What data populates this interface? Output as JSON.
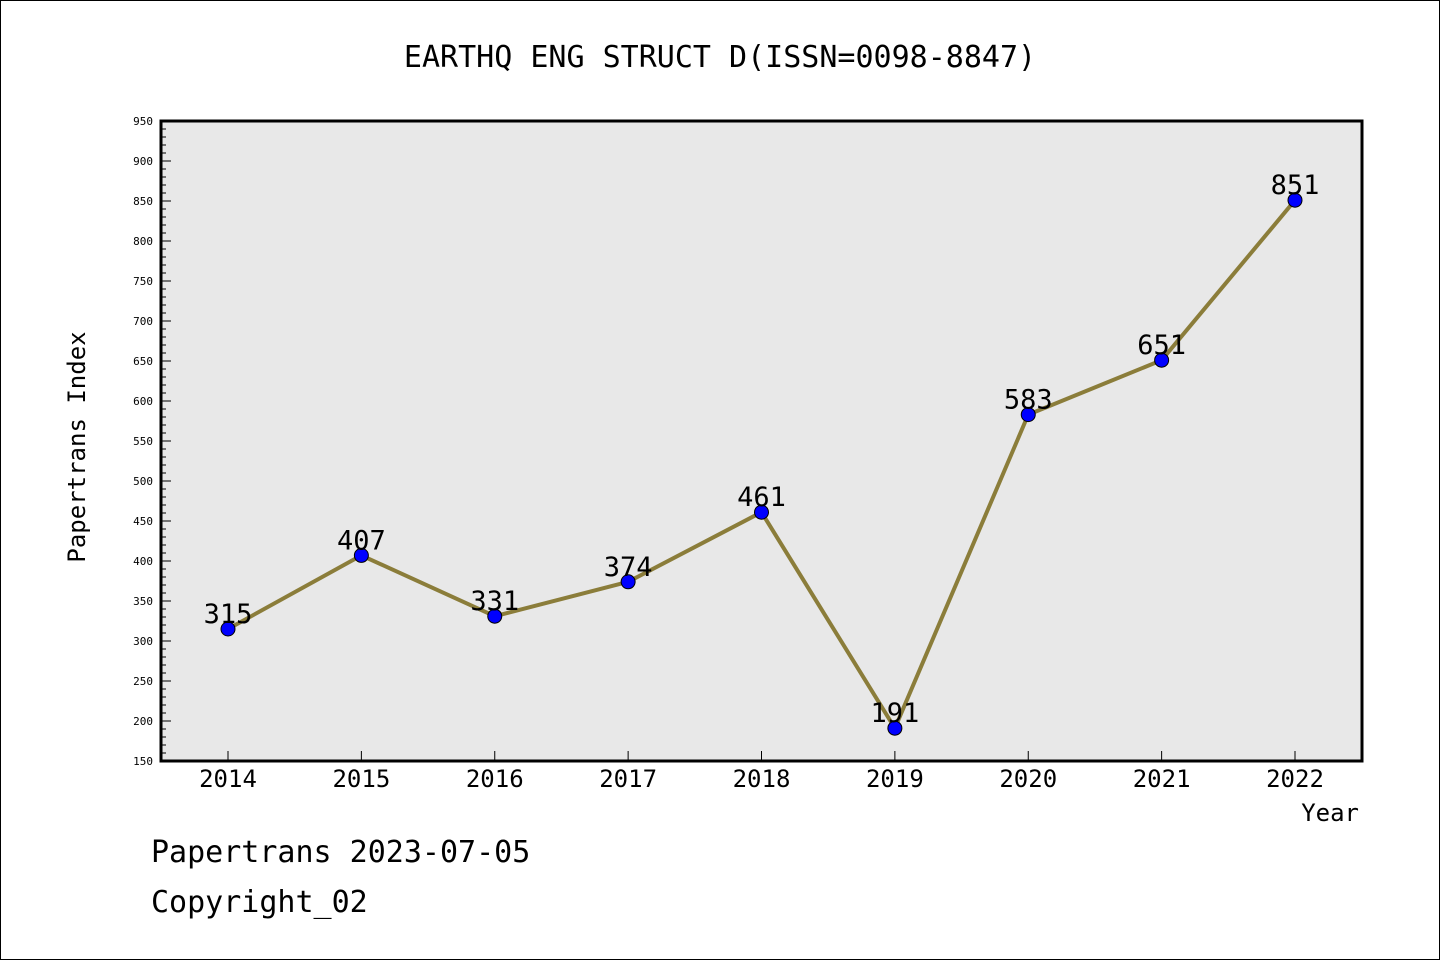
{
  "chart_data": {
    "type": "line",
    "title": "EARTHQ ENG STRUCT D(ISSN=0098-8847)",
    "xlabel": "Year",
    "ylabel": "Papertrans Index",
    "categories": [
      "2014",
      "2015",
      "2016",
      "2017",
      "2018",
      "2019",
      "2020",
      "2021",
      "2022"
    ],
    "series": [
      {
        "values": [
          315,
          407,
          331,
          374,
          461,
          191,
          583,
          651,
          851
        ],
        "color": "#8b7d3a",
        "marker_color": "#0000ff"
      }
    ],
    "data_labels": [
      "315",
      "407",
      "331",
      "374",
      "461",
      "191",
      "583",
      "651",
      "851"
    ],
    "ylim": [
      150,
      950
    ],
    "yticks": [
      "150",
      "200",
      "250",
      "300",
      "350",
      "400",
      "450",
      "500",
      "550",
      "600",
      "650",
      "700",
      "750",
      "800",
      "850",
      "900",
      "950"
    ],
    "plot_background": "#e8e8e8",
    "grid": false,
    "legend": "none"
  },
  "footer": {
    "line1": "Papertrans 2023-07-05",
    "line2": "Copyright_02"
  }
}
